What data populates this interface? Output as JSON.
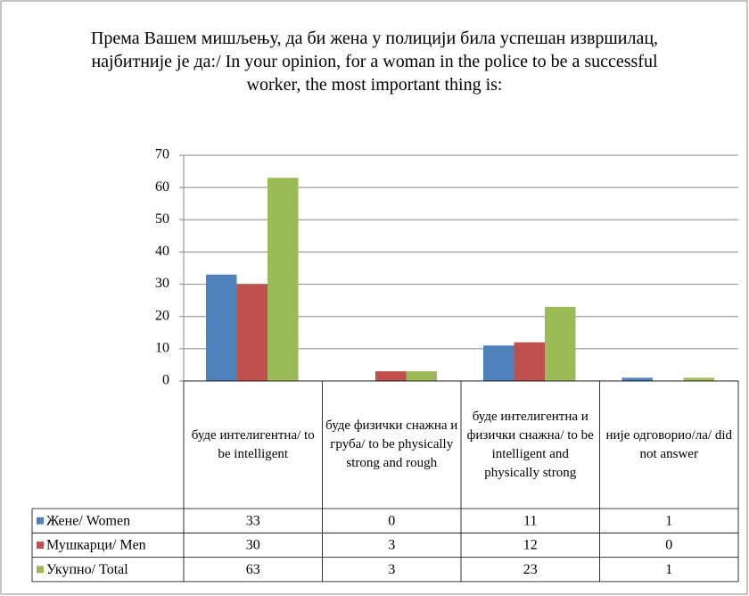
{
  "chart_data": {
    "type": "bar",
    "title": "Према Вашем мишљењу, да би жена у полицији била успешан извршилац, најбитније је да:/ In your opinion, for a woman in the police to be a successful worker, the most important thing is:",
    "categories": [
      "буде интелигентна/ to be intelligent",
      "буде физички снажна и груба/ to be physically strong and rough",
      "буде интелигентна и физички снажна/ to be intelligent and physically strong",
      "није одговорио/ла/ did not answer"
    ],
    "series": [
      {
        "name": "Жене/ Women",
        "color": "#4f81bd",
        "values": [
          33,
          0,
          11,
          1
        ]
      },
      {
        "name": "Мушкарци/ Men",
        "color": "#c0504d",
        "values": [
          30,
          3,
          12,
          0
        ]
      },
      {
        "name": "Укупно/ Total",
        "color": "#9bbb59",
        "values": [
          63,
          3,
          23,
          1
        ]
      }
    ],
    "ylim": [
      0,
      70
    ],
    "yticks": [
      0,
      10,
      20,
      30,
      40,
      50,
      60,
      70
    ],
    "grid": true
  }
}
